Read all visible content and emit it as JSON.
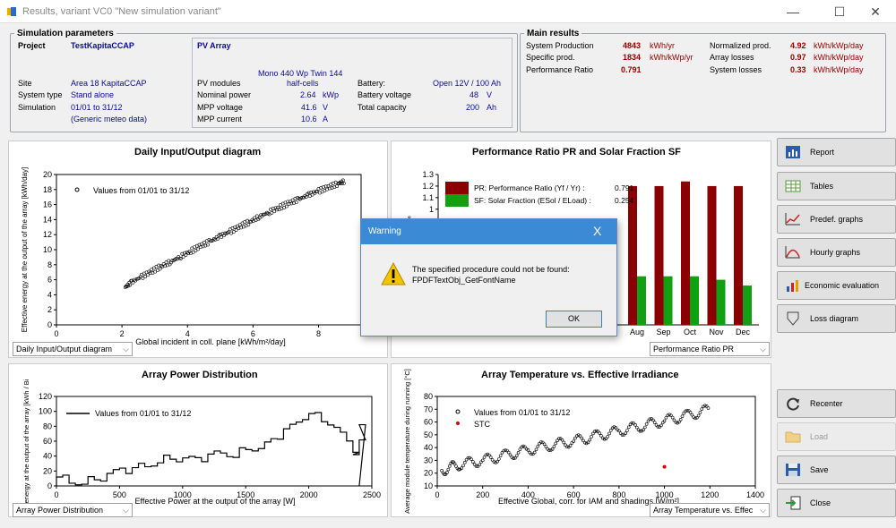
{
  "window": {
    "title": "Results, variant VC0  \"New simulation variant\"",
    "minimize": "—",
    "maximize": "☐",
    "close": "✕"
  },
  "sim": {
    "legend": "Simulation parameters",
    "project_label": "Project",
    "project_value": "TestKapitaCCAP",
    "site_label": "Site",
    "site_value": "Area 18 KapitaCCAP",
    "systype_label": "System type",
    "systype_value": "Stand alone",
    "simulation_label": "Simulation",
    "simulation_value": "01/01 to 31/12",
    "meteo": "(Generic meteo data)",
    "pv_title": "PV Array",
    "module_line1": "Mono 440 Wp Twin 144",
    "module_line2": "half-cells",
    "pvmodules_label": "PV modules",
    "nominal_label": "Nominal power",
    "nominal_value": "2.64",
    "nominal_unit": "kWp",
    "mppv_label": "MPP voltage",
    "mppv_value": "41.6",
    "mppv_unit": "V",
    "mppc_label": "MPP current",
    "mppc_value": "10.6",
    "mppc_unit": "A",
    "battery_label": "Battery:",
    "battery_value": "Open 12V / 100 Ah",
    "batv_label": "Battery voltage",
    "batv_value": "48",
    "batv_unit": "V",
    "cap_label": "Total capacity",
    "cap_value": "200",
    "cap_unit": "Ah"
  },
  "main": {
    "legend": "Main results",
    "prod_label": "System Production",
    "prod_value": "4843",
    "prod_unit": "kWh/yr",
    "spec_label": "Specific prod.",
    "spec_value": "1834",
    "spec_unit": "kWh/kWp/yr",
    "pr_label": "Performance Ratio",
    "pr_value": "0.791",
    "norm_label": "Normalized prod.",
    "norm_value": "4.92",
    "norm_unit": "kWh/kWp/day",
    "arrl_label": "Array losses",
    "arrl_value": "0.97",
    "arrl_unit": "kWh/kWp/day",
    "sysl_label": "System losses",
    "sysl_value": "0.33",
    "sysl_unit": "kWh/kWp/day"
  },
  "chart1": {
    "title": "Daily Input/Output diagram",
    "xlabel": "Global incident in coll. plane [kWh/m²/day]",
    "ylabel": "Effective energy at the output of the array [kWh/day]",
    "legend": "Values from 01/01 to 31/12",
    "dropdown": "Daily Input/Output diagram",
    "xticks": [
      "0",
      "2",
      "4",
      "6",
      "8"
    ],
    "yticks": [
      "0",
      "2",
      "4",
      "6",
      "8",
      "10",
      "12",
      "14",
      "16",
      "18",
      "20"
    ]
  },
  "chart2": {
    "title": "Performance Ratio PR  and Solar Fraction SF",
    "legend_pr": "PR: Performance Ratio (Yf / Yr) :",
    "legend_pr_val": "0.791",
    "legend_sf": "SF: Solar Fraction (ESol / ELoad) :",
    "legend_sf_val": "0.254",
    "dropdown": "Performance Ratio PR",
    "months": [
      "Aug",
      "Sep",
      "Oct",
      "Nov",
      "Dec"
    ],
    "yticks": [
      "1",
      "1.1",
      "1.2",
      "1.3"
    ],
    "ylabel_frag": "s"
  },
  "chart3": {
    "title": "Array Power Distribution",
    "xlabel": "Effective Power at the output of the array [W]",
    "ylabel": "energy at the output of the array [kWh / Bi",
    "legend": "Values from 01/01 to 31/12",
    "dropdown": "Array Power Distribution",
    "xticks": [
      "0",
      "500",
      "1000",
      "1500",
      "2000",
      "2500"
    ],
    "yticks": [
      "0",
      "20",
      "40",
      "60",
      "80",
      "100",
      "120"
    ]
  },
  "chart4": {
    "title": "Array Temperature vs. Effective Irradiance",
    "xlabel": "Effective Global, corr. for IAM and shadings [W/m²]",
    "ylabel": "Average module temperature during running [°C]",
    "legend1": "Values from 01/01 to 31/12",
    "legend2": "STC",
    "dropdown": "Array Temperature vs. Effec",
    "xticks": [
      "0",
      "200",
      "400",
      "600",
      "800",
      "1000",
      "1200",
      "1400"
    ],
    "yticks": [
      "10",
      "20",
      "30",
      "40",
      "50",
      "60",
      "70",
      "80"
    ]
  },
  "buttons": {
    "report": "Report",
    "tables": "Tables",
    "predef": "Predef. graphs",
    "hourly": "Hourly graphs",
    "econ": "Economic evaluation",
    "loss": "Loss diagram",
    "recenter": "Recenter",
    "load": "Load",
    "save": "Save",
    "close": "Close"
  },
  "dialog": {
    "title": "Warning",
    "x": "X",
    "line1": "The specified procedure could not be found:",
    "line2": "FPDFTextObj_GetFontName",
    "ok": "OK"
  },
  "chart_data": [
    {
      "type": "scatter",
      "title": "Daily Input/Output diagram",
      "xlabel": "Global incident in coll. plane [kWh/m²/day]",
      "ylabel": "Effective energy at the output of the array [kWh/day]",
      "xlim": [
        0,
        9.3
      ],
      "ylim": [
        0,
        20
      ],
      "series": [
        {
          "name": "Values from 01/01 to 31/12",
          "x": [
            2.1,
            2.3,
            2.6,
            2.9,
            3.2,
            3.5,
            3.8,
            4.1,
            4.4,
            4.7,
            5,
            5.3,
            5.6,
            5.9,
            6.2,
            6.5,
            6.8,
            7.1,
            7.4,
            7.7,
            8,
            8.3,
            8.6,
            8.8
          ],
          "y": [
            5,
            5.7,
            6.4,
            7.1,
            7.8,
            8.4,
            9.1,
            9.8,
            10.5,
            11.1,
            11.8,
            12.4,
            13.1,
            13.7,
            14.4,
            15,
            15.6,
            16.2,
            16.7,
            17.3,
            17.8,
            18.3,
            18.8,
            19.1
          ]
        }
      ]
    },
    {
      "type": "bar",
      "title": "Performance Ratio PR  and Solar Fraction SF",
      "categories": [
        "Aug",
        "Sep",
        "Oct",
        "Nov",
        "Dec"
      ],
      "series": [
        {
          "name": "PR: Performance Ratio (Yf / Yr) :",
          "values": [
            1.2,
            1.2,
            1.24,
            1.2,
            1.2
          ]
        },
        {
          "name": "SF: Solar Fraction (ESol / ELoad) :",
          "values": [
            0.42,
            0.42,
            0.42,
            0.39,
            0.34
          ]
        }
      ],
      "ylim": [
        0,
        1.3
      ]
    },
    {
      "type": "line",
      "title": "Array Power Distribution",
      "xlabel": "Effective Power at the output of the array [W]",
      "ylabel": "energy at the output of the array [kWh / Bin]",
      "xlim": [
        0,
        2500
      ],
      "ylim": [
        0,
        120
      ],
      "series": [
        {
          "name": "Values from 01/01 to 31/12",
          "x": [
            0,
            100,
            200,
            300,
            400,
            500,
            600,
            700,
            800,
            900,
            1000,
            1100,
            1200,
            1300,
            1400,
            1500,
            1600,
            1700,
            1800,
            1900,
            2000,
            2100,
            2200,
            2300,
            2350,
            2400
          ],
          "y": [
            12,
            7,
            6,
            9,
            14,
            20,
            23,
            28,
            35,
            38,
            36,
            34,
            40,
            45,
            42,
            52,
            50,
            60,
            73,
            85,
            100,
            90,
            80,
            58,
            38,
            80
          ]
        }
      ]
    },
    {
      "type": "scatter",
      "title": "Array Temperature vs. Effective Irradiance",
      "xlabel": "Effective Global, corr. for IAM and shadings [W/m²]",
      "ylabel": "Average module temperature during running [°C]",
      "xlim": [
        0,
        1400
      ],
      "ylim": [
        10,
        80
      ],
      "series": [
        {
          "name": "Values from 01/01 to 31/12",
          "x": [
            20,
            100,
            200,
            300,
            400,
            500,
            600,
            700,
            800,
            900,
            1000,
            1100,
            1200
          ],
          "y": [
            22,
            27,
            30,
            34,
            38,
            42,
            45,
            49,
            53,
            57,
            61,
            65,
            70
          ]
        },
        {
          "name": "STC",
          "x": [
            1000
          ],
          "y": [
            25
          ]
        }
      ]
    }
  ]
}
